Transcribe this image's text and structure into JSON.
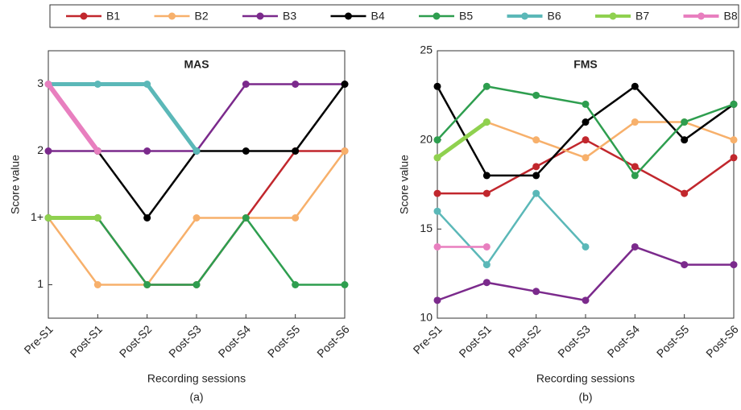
{
  "chart_data": [
    {
      "type": "line",
      "title": "MAS",
      "xlabel": "Recording sessions",
      "ylabel": "Score value",
      "caption": "(a)",
      "categories": [
        "Pre-S1",
        "Post-S1",
        "Post-S2",
        "Post-S3",
        "Post-S4",
        "Post-S5",
        "Post-S6"
      ],
      "ylim": [
        0.5,
        4.5
      ],
      "yticks": [
        {
          "value": 1,
          "label": "1"
        },
        {
          "value": 2,
          "label": "1+"
        },
        {
          "value": 3,
          "label": "2"
        },
        {
          "value": 4,
          "label": "3"
        }
      ],
      "series": [
        {
          "name": "B1",
          "color": "#c1272d",
          "line_width": 2.5,
          "values": [
            2,
            2,
            1,
            1,
            2,
            3,
            3
          ]
        },
        {
          "name": "B2",
          "color": "#f7b06b",
          "line_width": 2.5,
          "values": [
            2,
            1,
            1,
            2,
            2,
            2,
            3
          ]
        },
        {
          "name": "B3",
          "color": "#7b2a8c",
          "line_width": 2.5,
          "values": [
            3,
            3,
            3,
            3,
            4,
            4,
            4
          ]
        },
        {
          "name": "B4",
          "color": "#000000",
          "line_width": 2.5,
          "values": [
            null,
            3,
            2,
            3,
            3,
            3,
            4
          ]
        },
        {
          "name": "B5",
          "color": "#2e9e4f",
          "line_width": 2.5,
          "values": [
            2,
            2,
            1,
            1,
            2,
            1,
            1
          ]
        },
        {
          "name": "B6",
          "color": "#5bb8b8",
          "line_width": 5,
          "values": [
            4,
            4,
            4,
            3,
            null,
            null,
            null
          ]
        },
        {
          "name": "B7",
          "color": "#8fd14f",
          "line_width": 5,
          "values": [
            2,
            2,
            null,
            null,
            null,
            null,
            null
          ]
        },
        {
          "name": "B8",
          "color": "#e87fbf",
          "line_width": 6,
          "values": [
            4,
            3,
            null,
            null,
            null,
            null,
            null
          ]
        }
      ]
    },
    {
      "type": "line",
      "title": "FMS",
      "xlabel": "Recording sessions",
      "ylabel": "Score value",
      "caption": "(b)",
      "categories": [
        "Pre-S1",
        "Post-S1",
        "Post-S2",
        "Post-S3",
        "Post-S4",
        "Post-S5",
        "Post-S6"
      ],
      "ylim": [
        10,
        25
      ],
      "yticks": [
        10,
        15,
        20,
        25
      ],
      "series": [
        {
          "name": "B1",
          "color": "#c1272d",
          "line_width": 2.5,
          "values": [
            17,
            17,
            18.5,
            20,
            18.5,
            17,
            19
          ]
        },
        {
          "name": "B2",
          "color": "#f7b06b",
          "line_width": 2.5,
          "values": [
            19,
            21,
            20,
            19,
            21,
            21,
            20
          ]
        },
        {
          "name": "B3",
          "color": "#7b2a8c",
          "line_width": 2.5,
          "values": [
            11,
            12,
            11.5,
            11,
            14,
            13,
            13
          ]
        },
        {
          "name": "B4",
          "color": "#000000",
          "line_width": 2.5,
          "values": [
            23,
            18,
            18,
            21,
            23,
            20,
            22
          ]
        },
        {
          "name": "B5",
          "color": "#2e9e4f",
          "line_width": 2.5,
          "values": [
            20,
            23,
            22.5,
            22,
            18,
            21,
            22
          ]
        },
        {
          "name": "B6",
          "color": "#5bb8b8",
          "line_width": 2.5,
          "values": [
            16,
            13,
            17,
            14,
            null,
            null,
            null
          ]
        },
        {
          "name": "B7",
          "color": "#8fd14f",
          "line_width": 5,
          "values": [
            19,
            21,
            null,
            null,
            null,
            null,
            null
          ]
        },
        {
          "name": "B8",
          "color": "#e87fbf",
          "line_width": 2.5,
          "values": [
            14,
            14,
            null,
            null,
            null,
            null,
            null
          ]
        }
      ]
    }
  ]
}
